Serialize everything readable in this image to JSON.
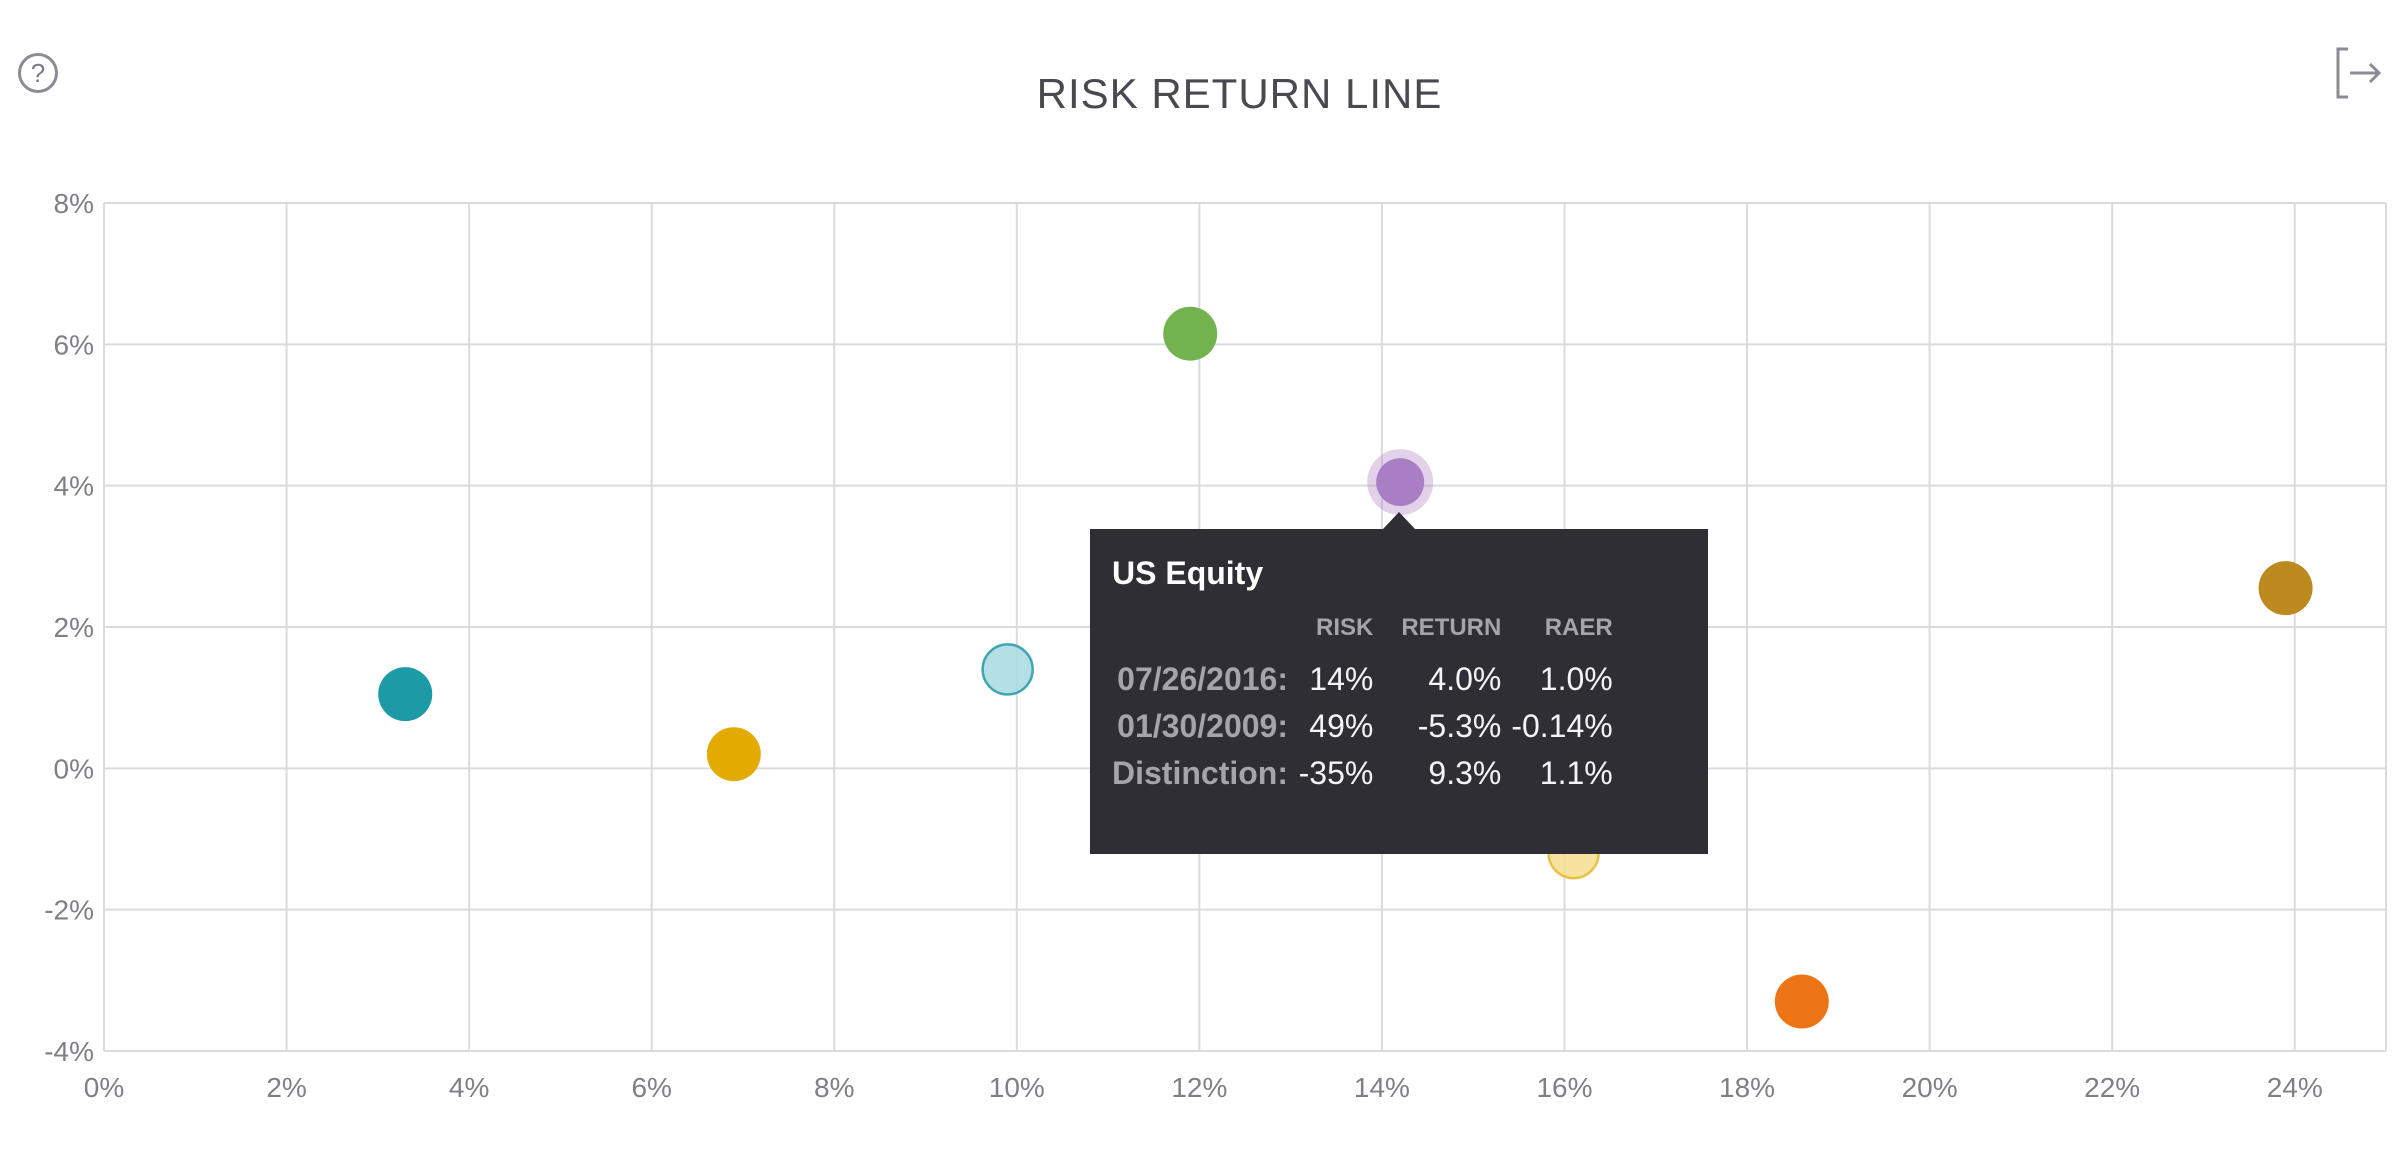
{
  "header": {
    "title": "RISK RETURN LINE",
    "help_icon": "question-circle-icon",
    "help_glyph": "?",
    "export_icon": "export-arrow-icon"
  },
  "tooltip": {
    "title": "US Equity",
    "columns": [
      "RISK",
      "RETURN",
      "RAER"
    ],
    "rows": [
      {
        "label": "07/26/2016:",
        "values": [
          "14%",
          "4.0%",
          "1.0%"
        ]
      },
      {
        "label": "01/30/2009:",
        "values": [
          "49%",
          "-5.3%",
          "-0.14%"
        ]
      },
      {
        "label": "Distinction:",
        "values": [
          "-35%",
          "9.3%",
          "1.1%"
        ]
      }
    ]
  },
  "chart_data": {
    "type": "scatter",
    "title": "RISK RETURN LINE",
    "xlabel": "",
    "ylabel": "",
    "xlim": [
      0,
      25
    ],
    "ylim": [
      -4,
      8
    ],
    "x_ticks": [
      "0%",
      "2%",
      "4%",
      "6%",
      "8%",
      "10%",
      "12%",
      "14%",
      "16%",
      "18%",
      "20%",
      "22%",
      "24%"
    ],
    "y_ticks": [
      "8%",
      "6%",
      "4%",
      "2%",
      "0%",
      "-2%",
      "-4%"
    ],
    "grid": true,
    "points": [
      {
        "x": 3.3,
        "y": 1.05,
        "color": "#1c9aa5",
        "style": "solid"
      },
      {
        "x": 6.9,
        "y": 0.2,
        "color": "#e3aa00",
        "style": "solid"
      },
      {
        "x": 9.9,
        "y": 1.4,
        "color": "#a6d9e0",
        "style": "light"
      },
      {
        "x": 11.9,
        "y": 6.15,
        "color": "#72b34f",
        "style": "solid"
      },
      {
        "x": 14.2,
        "y": 4.05,
        "color": "#a97ec4",
        "style": "highlighted"
      },
      {
        "x": 16.1,
        "y": -1.2,
        "color": "#f6dd8e",
        "style": "light"
      },
      {
        "x": 18.6,
        "y": -3.3,
        "color": "#ee7516",
        "style": "solid"
      },
      {
        "x": 23.9,
        "y": 2.55,
        "color": "#bc8a1f",
        "style": "solid"
      }
    ]
  }
}
